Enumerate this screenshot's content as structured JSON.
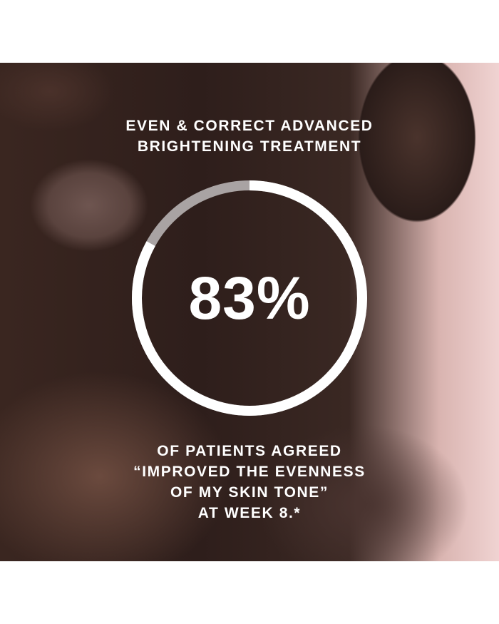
{
  "headline": [
    "EVEN & CORRECT ADVANCED",
    "BRIGHTENING TREATMENT"
  ],
  "stat": {
    "value_label": "83%",
    "percent": 83
  },
  "description": [
    "OF PATIENTS AGREED",
    "“IMPROVED THE EVENNESS",
    "OF MY SKIN TONE”",
    "AT WEEK 8.*"
  ],
  "colors": {
    "ring_fill": "#ffffff",
    "ring_track": "#a9a3a3",
    "text": "#ffffff"
  }
}
